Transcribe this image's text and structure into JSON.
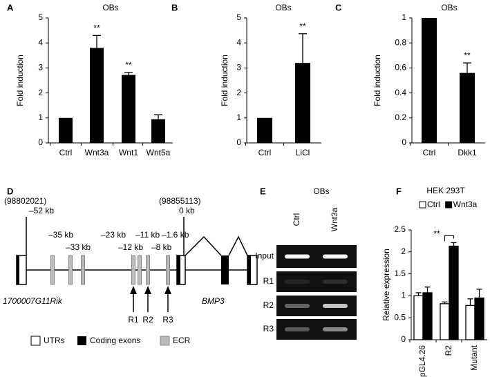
{
  "chart_data": [
    {
      "type": "bar",
      "panel_label": "A",
      "title": "OBs",
      "y_label": "Fold induction",
      "categories": [
        "Ctrl",
        "Wnt3a",
        "Wnt1",
        "Wnt5a"
      ],
      "values": [
        1,
        3.8,
        2.72,
        0.95
      ],
      "errors": [
        null,
        0.5,
        0.1,
        0.18
      ],
      "significance": [
        null,
        "**",
        "**",
        null
      ],
      "color": "#000000",
      "ylim": [
        0,
        5
      ],
      "yticks": [
        0,
        1,
        2,
        3,
        4,
        5
      ]
    },
    {
      "type": "bar",
      "panel_label": "B",
      "title": "OBs",
      "y_label": "Fold induction",
      "categories": [
        "Ctrl",
        "LiCl"
      ],
      "values": [
        1,
        3.2
      ],
      "errors": [
        null,
        1.17
      ],
      "significance": [
        null,
        "**"
      ],
      "color": "#000000",
      "ylim": [
        0,
        5
      ],
      "yticks": [
        0,
        1,
        2,
        3,
        4,
        5
      ]
    },
    {
      "type": "bar",
      "panel_label": "C",
      "title": "OBs",
      "y_label": "Fold induction",
      "categories": [
        "Ctrl",
        "Dkk1"
      ],
      "values": [
        1,
        0.56
      ],
      "errors": [
        null,
        0.08
      ],
      "significance": [
        null,
        "**"
      ],
      "color": "#000000",
      "ylim": [
        0,
        1
      ],
      "yticks": [
        0,
        0.2,
        0.4,
        0.6,
        0.8,
        1
      ]
    },
    {
      "type": "grouped-bar",
      "panel_label": "F",
      "title": "HEK 293T",
      "y_label": "Relative expression",
      "categories": [
        "pGL4.26",
        "R2",
        "Mutant"
      ],
      "series": [
        {
          "name": "Ctrl",
          "color": "#ffffff",
          "values": [
            1.0,
            0.82,
            0.78
          ],
          "errors": [
            0.07,
            0.04,
            0.15
          ]
        },
        {
          "name": "Wnt3a",
          "color": "#000000",
          "values": [
            1.07,
            2.13,
            0.95
          ],
          "errors": [
            0.13,
            0.08,
            0.2
          ]
        }
      ],
      "significance": [
        null,
        "**",
        null
      ],
      "legend": "top",
      "ylim": [
        0,
        2.5
      ],
      "yticks": [
        0,
        0.5,
        1,
        1.5,
        2,
        2.5
      ]
    }
  ],
  "diagram": {
    "panel_label": "D",
    "left_coordinate": "(98802021)",
    "left_distance": "–52 kb",
    "right_coordinate": "(98855113)",
    "right_distance": "0 kb",
    "ecr_labels": [
      "–35 kb",
      "–33 kb",
      "–23 kb",
      "–12 kb",
      "–11 kb",
      "–8 kb",
      "–1.6 kb"
    ],
    "gene_left": "1700007G11Rik",
    "gene_right": "BMP3",
    "regions": [
      "R1",
      "R2",
      "R3"
    ],
    "legend": [
      "UTRs",
      "Coding exons",
      "ECR"
    ]
  },
  "gel": {
    "panel_label": "E",
    "title": "OBs",
    "lanes": [
      "Ctrl",
      "Wnt3a"
    ],
    "rows": [
      "Input",
      "R1",
      "R2",
      "R3"
    ]
  }
}
